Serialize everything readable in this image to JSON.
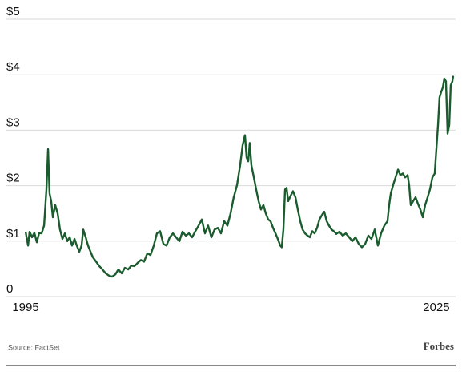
{
  "chart_data": {
    "type": "line",
    "source": "Source: FactSet",
    "brand": "Forbes",
    "x": [
      1995.0,
      1995.18,
      1995.29,
      1995.47,
      1995.64,
      1995.82,
      1995.99,
      1996.17,
      1996.35,
      1996.52,
      1996.64,
      1996.75,
      1996.87,
      1996.99,
      1997.16,
      1997.34,
      1997.51,
      1997.69,
      1997.87,
      1998.04,
      1998.22,
      1998.39,
      1998.57,
      1998.74,
      1998.92,
      1999.09,
      1999.21,
      1999.39,
      1999.56,
      1999.74,
      1999.91,
      2000.15,
      2000.38,
      2000.61,
      2000.85,
      2001.08,
      2001.32,
      2001.55,
      2001.78,
      2002.02,
      2002.25,
      2002.49,
      2002.72,
      2002.95,
      2003.19,
      2003.42,
      2003.65,
      2003.89,
      2004.12,
      2004.36,
      2004.59,
      2004.82,
      2005.06,
      2005.29,
      2005.53,
      2005.76,
      2005.99,
      2006.23,
      2006.46,
      2006.7,
      2006.93,
      2007.16,
      2007.4,
      2007.63,
      2007.87,
      2008.1,
      2008.33,
      2008.57,
      2008.8,
      2009.04,
      2009.27,
      2009.5,
      2009.74,
      2009.97,
      2010.2,
      2010.44,
      2010.67,
      2010.85,
      2011.02,
      2011.14,
      2011.26,
      2011.37,
      2011.49,
      2011.67,
      2011.84,
      2012.02,
      2012.19,
      2012.37,
      2012.54,
      2012.72,
      2012.89,
      2013.07,
      2013.25,
      2013.42,
      2013.6,
      2013.71,
      2013.83,
      2013.95,
      2014.06,
      2014.18,
      2014.36,
      2014.53,
      2014.71,
      2014.88,
      2015.06,
      2015.23,
      2015.41,
      2015.59,
      2015.76,
      2015.94,
      2016.11,
      2016.29,
      2016.46,
      2016.64,
      2016.81,
      2016.99,
      2017.16,
      2017.34,
      2017.51,
      2017.69,
      2017.92,
      2018.16,
      2018.39,
      2018.63,
      2018.86,
      2019.09,
      2019.33,
      2019.56,
      2019.8,
      2020.03,
      2020.26,
      2020.5,
      2020.73,
      2020.96,
      2021.2,
      2021.43,
      2021.55,
      2021.67,
      2021.84,
      2022.02,
      2022.2,
      2022.37,
      2022.55,
      2022.72,
      2022.9,
      2023.01,
      2023.13,
      2023.3,
      2023.48,
      2023.66,
      2023.83,
      2024.01,
      2024.18,
      2024.36,
      2024.53,
      2024.71,
      2024.88,
      2025.0,
      2025.12,
      2025.23,
      2025.35,
      2025.47,
      2025.58,
      2025.7,
      2025.82,
      2025.94,
      2026.05,
      2026.17,
      2026.23
    ],
    "series": [
      {
        "color": "#1a5c2e",
        "values": [
          1.17,
          0.92,
          1.17,
          1.07,
          1.15,
          0.98,
          1.15,
          1.14,
          1.28,
          1.93,
          2.66,
          1.86,
          1.72,
          1.43,
          1.65,
          1.5,
          1.21,
          1.04,
          1.14,
          1.0,
          1.07,
          0.92,
          1.04,
          0.92,
          0.81,
          0.92,
          1.21,
          1.07,
          0.92,
          0.81,
          0.71,
          0.63,
          0.55,
          0.49,
          0.42,
          0.38,
          0.36,
          0.4,
          0.49,
          0.42,
          0.52,
          0.49,
          0.56,
          0.55,
          0.61,
          0.66,
          0.63,
          0.78,
          0.75,
          0.92,
          1.14,
          1.18,
          0.95,
          0.92,
          1.07,
          1.14,
          1.07,
          1.0,
          1.17,
          1.1,
          1.14,
          1.07,
          1.18,
          1.28,
          1.39,
          1.14,
          1.28,
          1.07,
          1.21,
          1.24,
          1.14,
          1.36,
          1.28,
          1.5,
          1.79,
          2.01,
          2.37,
          2.73,
          2.91,
          2.51,
          2.44,
          2.77,
          2.37,
          2.15,
          1.93,
          1.72,
          1.57,
          1.65,
          1.5,
          1.39,
          1.36,
          1.24,
          1.14,
          1.04,
          0.92,
          0.89,
          1.21,
          1.93,
          1.96,
          1.72,
          1.82,
          1.9,
          1.79,
          1.57,
          1.36,
          1.21,
          1.14,
          1.1,
          1.07,
          1.18,
          1.14,
          1.24,
          1.39,
          1.47,
          1.53,
          1.36,
          1.28,
          1.21,
          1.18,
          1.13,
          1.17,
          1.1,
          1.14,
          1.07,
          1.0,
          1.07,
          0.95,
          0.89,
          0.95,
          1.1,
          1.04,
          1.21,
          0.92,
          1.14,
          1.28,
          1.36,
          1.65,
          1.86,
          2.01,
          2.15,
          2.29,
          2.19,
          2.22,
          2.15,
          2.19,
          2.01,
          1.65,
          1.72,
          1.79,
          1.67,
          1.57,
          1.43,
          1.65,
          1.79,
          1.93,
          2.15,
          2.22,
          2.66,
          3.09,
          3.59,
          3.69,
          3.77,
          3.93,
          3.88,
          2.94,
          3.09,
          3.81,
          3.88,
          3.98
        ]
      }
    ],
    "xlim": [
      1995,
      2026.23
    ],
    "xticks": [
      1995,
      2025
    ],
    "ylim": [
      0,
      5
    ],
    "yticks": [
      0,
      {
        "value": 1,
        "label": "$1"
      },
      {
        "value": 2,
        "label": "$2"
      },
      {
        "value": 3,
        "label": "$3"
      },
      {
        "value": 4,
        "label": "$4"
      },
      {
        "value": 5,
        "label": "$5"
      }
    ],
    "grid": true
  }
}
